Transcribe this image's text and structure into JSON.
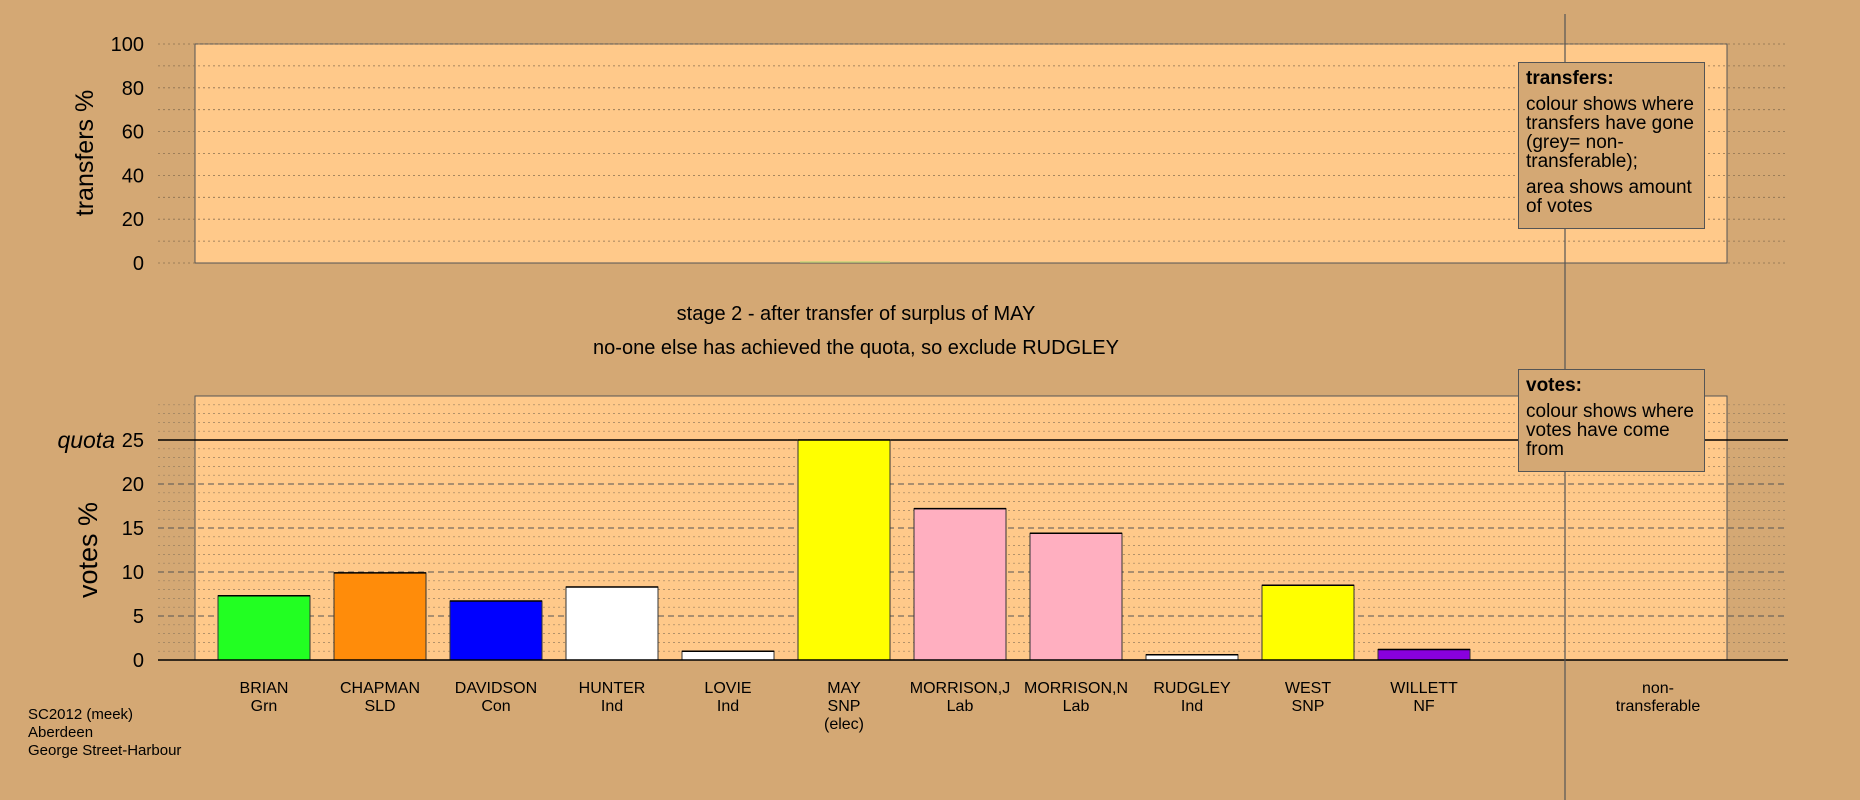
{
  "chart_data": {
    "type": "bar",
    "top_panel": {
      "ylabel": "transfers %",
      "yticks": [
        0,
        20,
        40,
        60,
        80,
        100
      ],
      "ylim": [
        0,
        100
      ],
      "values": [
        0,
        0,
        0,
        0,
        0,
        0,
        0,
        0,
        0,
        0,
        0,
        0
      ]
    },
    "bottom_panel": {
      "ylabel": "votes %",
      "quota_label": "quota",
      "quota": 25,
      "yticks": [
        0,
        5,
        10,
        15,
        20,
        25
      ],
      "ylim": [
        0,
        30
      ],
      "categories": [
        {
          "name": "BRIAN",
          "party": "Grn",
          "note": "",
          "value": 7.3,
          "color": "#22ff22"
        },
        {
          "name": "CHAPMAN",
          "party": "SLD",
          "note": "",
          "value": 9.9,
          "color": "#ff8c0a"
        },
        {
          "name": "DAVIDSON",
          "party": "Con",
          "note": "",
          "value": 6.7,
          "color": "#0000ff"
        },
        {
          "name": "HUNTER",
          "party": "Ind",
          "note": "",
          "value": 8.3,
          "color": "#ffffff"
        },
        {
          "name": "LOVIE",
          "party": "Ind",
          "note": "",
          "value": 1.0,
          "color": "#ffffff"
        },
        {
          "name": "MAY",
          "party": "SNP",
          "note": "(elec)",
          "value": 25.0,
          "color": "#ffff00"
        },
        {
          "name": "MORRISON,J",
          "party": "Lab",
          "note": "",
          "value": 17.2,
          "color": "#ffafc0"
        },
        {
          "name": "MORRISON,N",
          "party": "Lab",
          "note": "",
          "value": 14.4,
          "color": "#ffafc0"
        },
        {
          "name": "RUDGLEY",
          "party": "Ind",
          "note": "",
          "value": 0.6,
          "color": "#ffffff"
        },
        {
          "name": "WEST",
          "party": "SNP",
          "note": "",
          "value": 8.5,
          "color": "#ffff00"
        },
        {
          "name": "WILLETT",
          "party": "NF",
          "note": "",
          "value": 1.2,
          "color": "#8800dd"
        }
      ],
      "nontransferable": {
        "line1": "non-",
        "line2": "transferable",
        "value": 0
      }
    },
    "colors": {
      "background": "#d4a874",
      "plot_fill": "#ffc98a"
    }
  },
  "stage_title": "stage 2 - after transfer of surplus of MAY",
  "stage_subtitle": "no-one else has achieved the quota, so exclude RUDGLEY",
  "legend_transfers": {
    "title": "transfers:",
    "p1": "colour shows where transfers have gone (grey= non-transferable);",
    "p2": "area shows amount of votes"
  },
  "legend_votes": {
    "title": "votes:",
    "p1": "colour shows where votes have come from"
  },
  "footer": {
    "line1": "SC2012 (meek)",
    "line2": "Aberdeen",
    "line3": "George Street-Harbour"
  }
}
